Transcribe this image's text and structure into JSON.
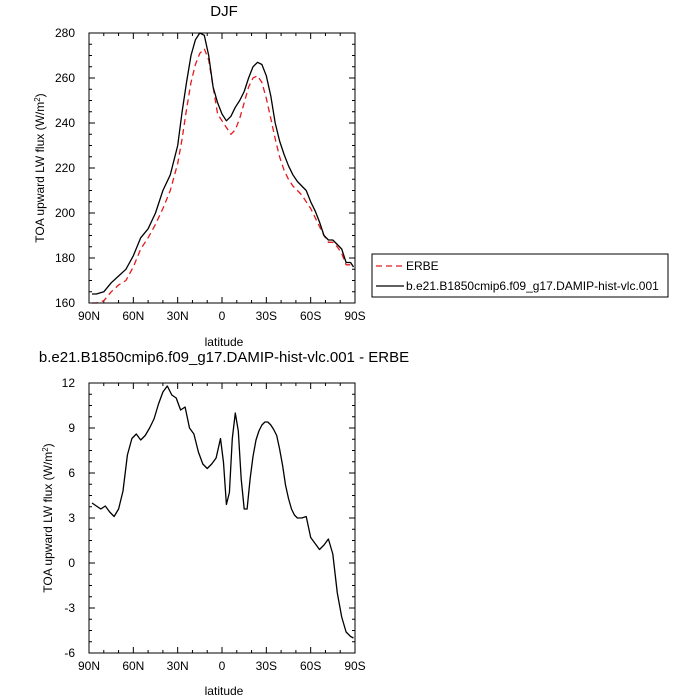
{
  "chart_data": [
    {
      "type": "line",
      "title": "DJF",
      "xlabel": "latitude",
      "ylabel": "TOA upward LW flux (W/m",
      "ylabel_sup": "2",
      "ylabel_close": ")",
      "xlim": [
        90,
        -90
      ],
      "ylim": [
        160,
        280
      ],
      "xticks": [
        90,
        60,
        30,
        0,
        -30,
        -60,
        -90
      ],
      "xtick_labels": [
        "90N",
        "60N",
        "30N",
        "0",
        "30S",
        "60S",
        "90S"
      ],
      "yticks": [
        160,
        180,
        200,
        220,
        240,
        260,
        280
      ],
      "ytick_labels": [
        "160",
        "180",
        "200",
        "220",
        "240",
        "260",
        "280"
      ],
      "legend": "right",
      "series": [
        {
          "name": "ERBE",
          "color": "#e41a1c",
          "dash": "dashed",
          "x": [
            88,
            85,
            80,
            75,
            70,
            65,
            60,
            55,
            50,
            45,
            40,
            35,
            30,
            27,
            24,
            21,
            18,
            15,
            12,
            9,
            6,
            3,
            0,
            -3,
            -6,
            -9,
            -12,
            -15,
            -18,
            -21,
            -24,
            -27,
            -30,
            -33,
            -36,
            -39,
            -42,
            -45,
            -48,
            -51,
            -54,
            -57,
            -60,
            -63,
            -66,
            -69,
            -72,
            -75,
            -78,
            -81,
            -84,
            -87,
            -89
          ],
          "y": [
            160,
            160,
            161,
            165,
            168,
            170,
            176,
            184,
            189,
            195,
            202,
            210,
            222,
            233,
            246,
            258,
            266,
            271,
            273,
            268,
            256,
            244,
            241,
            238,
            235,
            237,
            242,
            249,
            256,
            260,
            261,
            258,
            251,
            242,
            233,
            225,
            219,
            215,
            212,
            210,
            208,
            205,
            202,
            198,
            194,
            190,
            187,
            187,
            185,
            182,
            177,
            177,
            177
          ]
        },
        {
          "name": "b.e21.B1850cmip6.f09_g17.DAMIP-hist-vlc.001",
          "color": "#000000",
          "dash": "solid",
          "x": [
            88,
            85,
            80,
            75,
            70,
            65,
            60,
            55,
            50,
            45,
            40,
            35,
            30,
            27,
            24,
            21,
            18,
            15,
            12,
            9,
            6,
            3,
            0,
            -3,
            -6,
            -9,
            -12,
            -15,
            -18,
            -21,
            -24,
            -27,
            -30,
            -33,
            -36,
            -39,
            -42,
            -45,
            -48,
            -51,
            -54,
            -57,
            -60,
            -63,
            -66,
            -69,
            -72,
            -75,
            -78,
            -81,
            -84,
            -87,
            -89
          ],
          "y": [
            164,
            164,
            165,
            169,
            172,
            175,
            181,
            189,
            193,
            200,
            210,
            217,
            230,
            245,
            258,
            270,
            277,
            280,
            279,
            270,
            256,
            249,
            244,
            241,
            243,
            247,
            250,
            254,
            260,
            265,
            267,
            266,
            261,
            252,
            240,
            232,
            226,
            221,
            217,
            214,
            212,
            210,
            205,
            201,
            196,
            190,
            188,
            188,
            186,
            184,
            178,
            178,
            176
          ]
        }
      ]
    },
    {
      "type": "line",
      "title": "b.e21.B1850cmip6.f09_g17.DAMIP-hist-vlc.001 - ERBE",
      "xlabel": "latitude",
      "ylabel": "TOA upward LW flux (W/m",
      "ylabel_sup": "2",
      "ylabel_close": ")",
      "xlim": [
        90,
        -90
      ],
      "ylim": [
        -6,
        12
      ],
      "xticks": [
        90,
        60,
        30,
        0,
        -30,
        -60,
        -90
      ],
      "xtick_labels": [
        "90N",
        "60N",
        "30N",
        "0",
        "30S",
        "60S",
        "90S"
      ],
      "yticks": [
        -6,
        -3,
        0,
        3,
        6,
        9,
        12
      ],
      "ytick_labels": [
        "-6",
        "-3",
        "0",
        "3",
        "6",
        "9",
        "12"
      ],
      "series": [
        {
          "color": "#000000",
          "dash": "solid",
          "x": [
            88,
            85,
            82,
            79,
            76,
            73,
            70,
            67,
            64,
            61,
            58,
            55,
            52,
            49,
            46,
            43,
            40,
            37,
            34,
            31,
            28,
            25,
            22,
            19,
            16,
            13,
            10,
            7,
            4,
            1,
            -1,
            -3,
            -5,
            -7,
            -9,
            -11,
            -13,
            -15,
            -17,
            -19,
            -21,
            -23,
            -25,
            -27,
            -29,
            -31,
            -33,
            -35,
            -37,
            -39,
            -41,
            -43,
            -45,
            -47,
            -49,
            -51,
            -54,
            -57,
            -60,
            -63,
            -66,
            -69,
            -72,
            -75,
            -78,
            -81,
            -84,
            -87,
            -89
          ],
          "y": [
            4.0,
            3.8,
            3.6,
            3.8,
            3.4,
            3.1,
            3.6,
            4.8,
            7.2,
            8.3,
            8.6,
            8.2,
            8.5,
            9.0,
            9.6,
            10.6,
            11.4,
            11.8,
            11.2,
            11.0,
            10.2,
            10.4,
            9.0,
            8.6,
            7.4,
            6.6,
            6.3,
            6.6,
            7.0,
            8.3,
            6.7,
            3.9,
            4.7,
            8.3,
            10.0,
            8.8,
            5.6,
            3.6,
            3.6,
            5.6,
            7.1,
            8.2,
            8.8,
            9.2,
            9.4,
            9.4,
            9.2,
            8.9,
            8.5,
            7.6,
            6.5,
            5.2,
            4.3,
            3.6,
            3.2,
            3.0,
            3.0,
            3.1,
            1.7,
            1.3,
            0.9,
            1.2,
            1.6,
            0.6,
            -2.0,
            -3.6,
            -4.6,
            -4.9,
            -5.0
          ]
        }
      ]
    }
  ]
}
